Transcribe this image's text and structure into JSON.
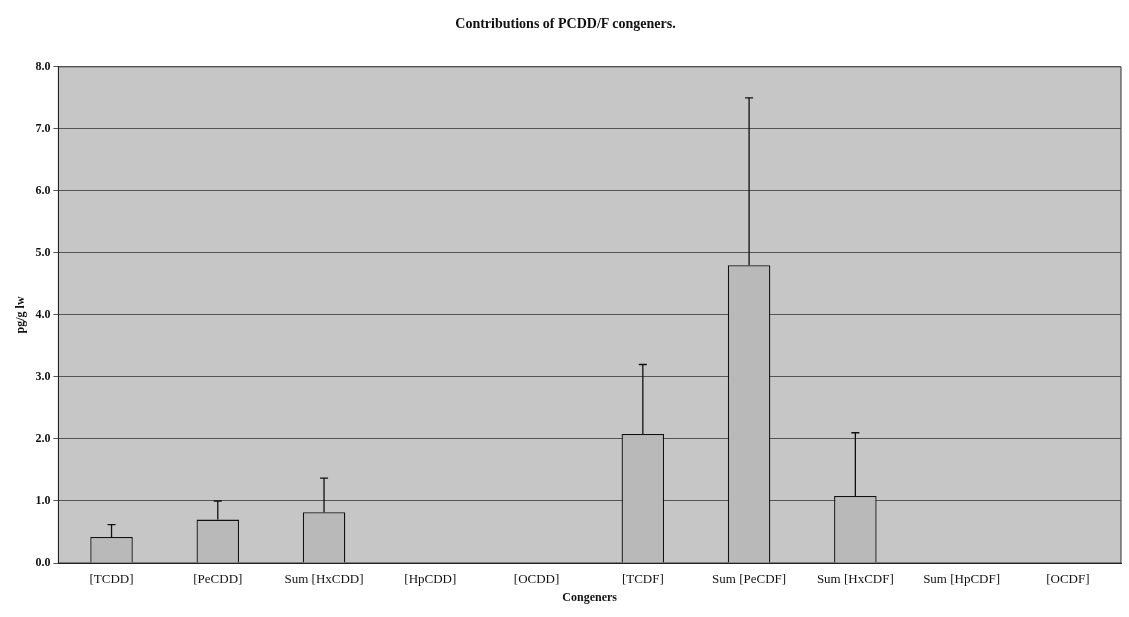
{
  "chart_data": {
    "type": "bar",
    "title": "Contributions of PCDD/F congeners.",
    "xlabel": "Congeners",
    "ylabel": "pg/g lw",
    "categories": [
      "[TCDD]",
      "[PeCDD]",
      "Sum [HxCDD]",
      "[HpCDD]",
      "[OCDD]",
      "[TCDF]",
      "Sum [PeCDF]",
      "Sum [HxCDF]",
      "Sum [HpCDF]",
      "[OCDF]"
    ],
    "values": [
      0.42,
      0.7,
      0.82,
      0,
      0,
      2.08,
      4.8,
      1.08,
      0,
      0
    ],
    "errors": [
      [
        0.42,
        0.62
      ],
      [
        0.7,
        1.0
      ],
      [
        0.82,
        1.37
      ],
      null,
      null,
      [
        2.08,
        3.2
      ],
      [
        4.8,
        7.5
      ],
      [
        1.08,
        2.1
      ],
      null,
      null
    ],
    "color": "#b9b9b9",
    "ylim": [
      0,
      8
    ],
    "yticks": [
      {
        "value": 0,
        "label": "0.0"
      },
      {
        "value": 1,
        "label": "1.0"
      },
      {
        "value": 2,
        "label": "2.0"
      },
      {
        "value": 3,
        "label": "3.0"
      },
      {
        "value": 4,
        "label": "4.0"
      },
      {
        "value": 5,
        "label": "5.0"
      },
      {
        "value": 6,
        "label": "6.0"
      },
      {
        "value": 7,
        "label": "7.0"
      },
      {
        "value": 8,
        "label": "8.0"
      }
    ],
    "grid": "y"
  }
}
